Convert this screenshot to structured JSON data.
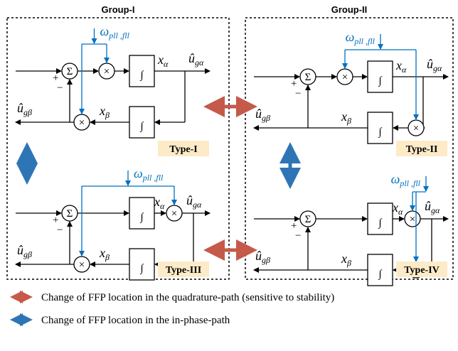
{
  "groups": [
    {
      "title": "Group-I"
    },
    {
      "title": "Group-II"
    }
  ],
  "symbols": {
    "sum": "Σ",
    "multiply": "×",
    "integral": "∫",
    "plus": "+",
    "minus": "−"
  },
  "signals": {
    "omega": {
      "symbol": "ω",
      "subscript": "pll ,fll"
    },
    "x_alpha": {
      "symbol": "x",
      "subscript": "α"
    },
    "x_beta": {
      "symbol": "x",
      "subscript": "β"
    },
    "u_alpha": {
      "symbol": "û",
      "subscript": "gα"
    },
    "u_beta": {
      "symbol": "û",
      "subscript": "gβ"
    }
  },
  "blocks": [
    {
      "label": "Type-I"
    },
    {
      "label": "Type-II"
    },
    {
      "label": "Type-III"
    },
    {
      "label": "Type-IV"
    }
  ],
  "legend": [
    {
      "text": "Change of FFP location in the quadrature-path (sensitive to stability)"
    },
    {
      "text": "Change of FFP location in the in-phase-path"
    }
  ]
}
